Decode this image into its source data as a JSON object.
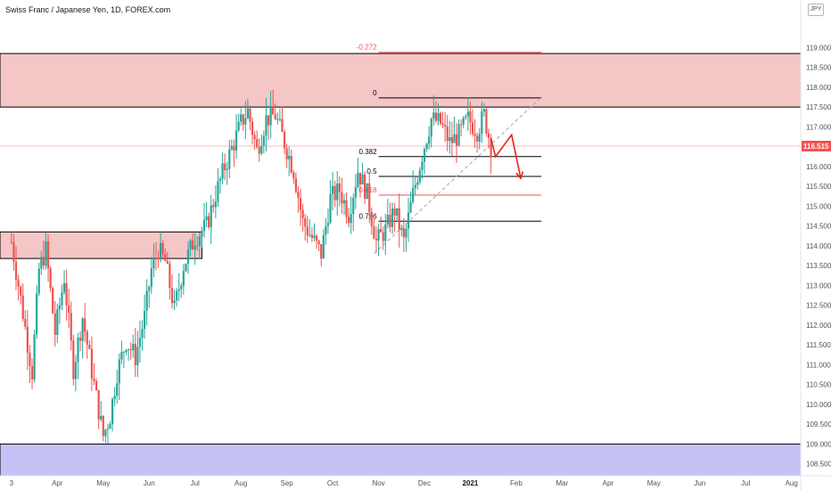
{
  "header": {
    "title": "Swiss Franc / Japanese Yen, 1D, FOREX.com",
    "currency": "JPY"
  },
  "colors": {
    "bull": "#26a69a",
    "bear": "#ef5350",
    "supply_zone": "#f5c6c6",
    "demand_zone": "#c5c2f5",
    "zone_border": "#000000",
    "fib_neg": "#ef5350",
    "fib_line": "#000000",
    "fib_618": "#ef5350",
    "projection": "#e8221b",
    "trendline": "#a6a6a6",
    "price_line": "#ef5350",
    "axis_text": "#50535e"
  },
  "chart_data": {
    "type": "candlestick",
    "symbol": "CHFJPY",
    "interval": "1D",
    "ylim": [
      108.2,
      120.2
    ],
    "y_ticks": [
      "108.500",
      "109.000",
      "109.500",
      "110.000",
      "110.500",
      "111.000",
      "111.500",
      "112.000",
      "112.500",
      "113.000",
      "113.500",
      "114.000",
      "114.500",
      "115.000",
      "115.500",
      "116.000",
      "116.500",
      "117.000",
      "117.500",
      "118.000",
      "118.500",
      "119.000"
    ],
    "x_ticks": [
      {
        "label": "3",
        "month_index": 2.0
      },
      {
        "label": "Apr",
        "month_index": 3.0
      },
      {
        "label": "May",
        "month_index": 4.0
      },
      {
        "label": "Jun",
        "month_index": 5.0
      },
      {
        "label": "Jul",
        "month_index": 6.0
      },
      {
        "label": "Aug",
        "month_index": 7.0
      },
      {
        "label": "Sep",
        "month_index": 8.0
      },
      {
        "label": "Oct",
        "month_index": 9.0
      },
      {
        "label": "Nov",
        "month_index": 10.0
      },
      {
        "label": "Dec",
        "month_index": 11.0
      },
      {
        "label": "2021",
        "month_index": 12.0,
        "bold": true
      },
      {
        "label": "Feb",
        "month_index": 13.0
      },
      {
        "label": "Mar",
        "month_index": 14.0
      },
      {
        "label": "Apr",
        "month_index": 15.0
      },
      {
        "label": "May",
        "month_index": 16.0
      },
      {
        "label": "Jun",
        "month_index": 17.0
      },
      {
        "label": "Jul",
        "month_index": 18.0
      },
      {
        "label": "Aug",
        "month_index": 19.0
      }
    ],
    "x_range": [
      1.75,
      19.2
    ],
    "last_price": "116.515",
    "last_price_value": 116.515,
    "zones": [
      {
        "kind": "supply",
        "top": 118.85,
        "bottom": 117.5,
        "x_from": 1.75,
        "x_to": 19.2
      },
      {
        "kind": "supply",
        "top": 114.35,
        "bottom": 113.68,
        "x_from": 1.75,
        "x_to": 6.15
      },
      {
        "kind": "demand",
        "top": 109.0,
        "bottom": 108.2,
        "x_from": 1.75,
        "x_to": 19.2
      }
    ],
    "fib_levels": [
      {
        "label": "-0.272",
        "price": 118.88,
        "color_key": "fib_neg"
      },
      {
        "label": "0",
        "price": 117.73,
        "color_key": "fib_line"
      },
      {
        "label": "0.382",
        "price": 116.25,
        "color_key": "fib_line"
      },
      {
        "label": "0.5",
        "price": 115.75,
        "color_key": "fib_line"
      },
      {
        "label": "0.618",
        "price": 115.28,
        "color_key": "fib_618"
      },
      {
        "label": "0.786",
        "price": 114.62,
        "color_key": "fib_line"
      }
    ],
    "fib_x_range": [
      10.0,
      13.55
    ],
    "projection": [
      {
        "month_index": 12.45,
        "price": 116.7
      },
      {
        "month_index": 12.55,
        "price": 116.25
      },
      {
        "month_index": 12.9,
        "price": 116.8
      },
      {
        "month_index": 13.1,
        "price": 115.7
      }
    ],
    "trendline": [
      {
        "month_index": 9.9,
        "price": 113.8
      },
      {
        "month_index": 13.55,
        "price": 117.75
      }
    ],
    "price_path": [
      [
        2.0,
        114.1
      ],
      [
        2.25,
        112.3
      ],
      [
        2.45,
        110.8
      ],
      [
        2.6,
        113.4
      ],
      [
        2.75,
        113.9
      ],
      [
        2.95,
        111.8
      ],
      [
        3.15,
        113.2
      ],
      [
        3.35,
        110.9
      ],
      [
        3.55,
        112.2
      ],
      [
        3.8,
        110.5
      ],
      [
        4.0,
        109.2
      ],
      [
        4.15,
        109.7
      ],
      [
        4.3,
        110.8
      ],
      [
        4.5,
        111.6
      ],
      [
        4.7,
        111.2
      ],
      [
        4.9,
        112.2
      ],
      [
        5.05,
        113.4
      ],
      [
        5.2,
        113.9
      ],
      [
        5.35,
        113.6
      ],
      [
        5.55,
        112.4
      ],
      [
        5.75,
        113.5
      ],
      [
        6.0,
        114.2
      ],
      [
        6.25,
        114.5
      ],
      [
        6.45,
        115.3
      ],
      [
        6.65,
        116.0
      ],
      [
        6.85,
        116.6
      ],
      [
        7.0,
        117.1
      ],
      [
        7.15,
        117.4
      ],
      [
        7.35,
        116.4
      ],
      [
        7.55,
        117.2
      ],
      [
        7.75,
        117.3
      ],
      [
        7.95,
        116.6
      ],
      [
        8.15,
        115.9
      ],
      [
        8.35,
        114.6
      ],
      [
        8.55,
        114.2
      ],
      [
        8.75,
        113.8
      ],
      [
        8.95,
        115.2
      ],
      [
        9.15,
        115.4
      ],
      [
        9.35,
        114.8
      ],
      [
        9.55,
        115.9
      ],
      [
        9.75,
        115.3
      ],
      [
        9.95,
        114.1
      ],
      [
        10.15,
        114.4
      ],
      [
        10.35,
        114.9
      ],
      [
        10.55,
        114.1
      ],
      [
        10.75,
        115.3
      ],
      [
        10.95,
        116.3
      ],
      [
        11.15,
        117.2
      ],
      [
        11.35,
        117.1
      ],
      [
        11.55,
        116.6
      ],
      [
        11.75,
        116.8
      ],
      [
        11.95,
        117.2
      ],
      [
        12.15,
        116.9
      ],
      [
        12.3,
        117.3
      ],
      [
        12.45,
        116.515
      ]
    ]
  }
}
